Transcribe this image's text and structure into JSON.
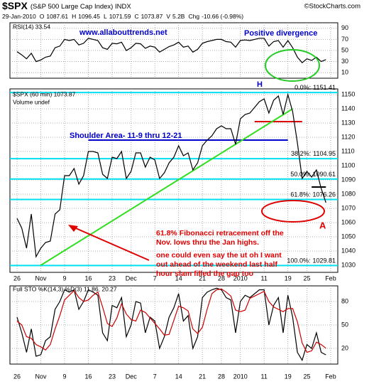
{
  "header": {
    "symbol": "$SPX",
    "name": "(S&P 500 Large Cap Index) INDX",
    "credit": "©StockCharts.com",
    "date": "29-Jan-2010",
    "quote": [
      {
        "label": "O",
        "value": "1087.61"
      },
      {
        "label": "H",
        "value": "1096.45"
      },
      {
        "label": "L",
        "value": "1071.59"
      },
      {
        "label": "C",
        "value": "1073.87"
      },
      {
        "label": "V",
        "value": "5.2B"
      },
      {
        "label": "Chg",
        "value": "-10.66 (-0.98%)"
      }
    ]
  },
  "x_axis": {
    "xlim": [
      -1.5,
      67.5
    ],
    "x": [
      0,
      1,
      2,
      3,
      4,
      5,
      6,
      7,
      8,
      9,
      10,
      11,
      12,
      13,
      14,
      15,
      16,
      17,
      18,
      19,
      20,
      21,
      22,
      23,
      24,
      25,
      26,
      27,
      28,
      29,
      30,
      31,
      32,
      33,
      34,
      35,
      36,
      37,
      38,
      39,
      40,
      41,
      42,
      43,
      44,
      45,
      46,
      47,
      48,
      49,
      50,
      51,
      52,
      53,
      54,
      55,
      56,
      57,
      58,
      59,
      60,
      61,
      62,
      63,
      64,
      65
    ],
    "xticks": [
      {
        "value": 0,
        "label": "26"
      },
      {
        "value": 5,
        "label": "Nov"
      },
      {
        "value": 10,
        "label": "9"
      },
      {
        "value": 15,
        "label": "16"
      },
      {
        "value": 20,
        "label": "23"
      },
      {
        "value": 24,
        "label": "Dec"
      },
      {
        "value": 29,
        "label": "7"
      },
      {
        "value": 34,
        "label": "14"
      },
      {
        "value": 39,
        "label": "21"
      },
      {
        "value": 43,
        "label": "28"
      },
      {
        "value": 47,
        "label": "2010"
      },
      {
        "value": 52,
        "label": "11"
      },
      {
        "value": 57,
        "label": "19"
      },
      {
        "value": 61,
        "label": "25"
      },
      {
        "value": 66,
        "label": "Feb"
      }
    ]
  },
  "chart_data": [
    {
      "type": "line",
      "title": "RSI(14) 33.54",
      "ylim": [
        0,
        100
      ],
      "yticks": [
        10,
        30,
        50,
        70,
        90
      ],
      "grid": true,
      "color": "#000000",
      "values": [
        48,
        42,
        35,
        45,
        30,
        33,
        38,
        40,
        55,
        58,
        70,
        68,
        70,
        60,
        63,
        72,
        70,
        68,
        55,
        52,
        63,
        62,
        65,
        50,
        55,
        63,
        62,
        54,
        58,
        56,
        47,
        52,
        57,
        60,
        65,
        56,
        58,
        47,
        52,
        63,
        66,
        68,
        70,
        70,
        66,
        65,
        56,
        68,
        69,
        68,
        70,
        72,
        72,
        58,
        66,
        68,
        56,
        68,
        55,
        38,
        28,
        35,
        32,
        38,
        30,
        33.54
      ],
      "annotations": {
        "site": "www.allabouttrends.net",
        "divergence": "Positive divergence"
      }
    },
    {
      "type": "line",
      "title": "$SPX (60 min) 1073.87",
      "subtitle": "Volume undef",
      "ylim": [
        1025,
        1154
      ],
      "yticks": [
        1030,
        1040,
        1050,
        1060,
        1070,
        1080,
        1090,
        1100,
        1110,
        1120,
        1130,
        1140,
        1150
      ],
      "grid": true,
      "color": "#000000",
      "values": [
        1063,
        1056,
        1042,
        1066,
        1036,
        1042,
        1046,
        1047,
        1066,
        1069,
        1093,
        1093,
        1098,
        1087,
        1093,
        1110,
        1110,
        1109,
        1094,
        1091,
        1106,
        1105,
        1110,
        1091,
        1096,
        1109,
        1109,
        1099,
        1106,
        1104,
        1091,
        1095,
        1102,
        1106,
        1114,
        1107,
        1109,
        1097,
        1102,
        1114,
        1118,
        1121,
        1126,
        1128,
        1126,
        1126,
        1115,
        1133,
        1136,
        1137,
        1141,
        1145,
        1147,
        1137,
        1146,
        1149,
        1136,
        1150,
        1138,
        1116,
        1091,
        1096,
        1092,
        1097,
        1084,
        1074
      ],
      "fibonacci": [
        {
          "label": "0.0%:",
          "value": 1151.41
        },
        {
          "label": "38.2%:",
          "value": 1104.95
        },
        {
          "label": "50.0%:",
          "value": 1090.61
        },
        {
          "label": "61.8%:",
          "value": 1076.26
        },
        {
          "label": "100.0%:",
          "value": 1029.81
        }
      ],
      "fib_color": "#00e0f0",
      "lines": [
        {
          "x": [
            15,
            57
          ],
          "y": [
            1118,
            1118
          ],
          "color": "#0000cc"
        },
        {
          "x": [
            50,
            60
          ],
          "y": [
            1131,
            1131
          ],
          "color": "#dd0000"
        },
        {
          "x": [
            5,
            58
          ],
          "y": [
            1030,
            1140
          ],
          "color": "#33dd22"
        },
        {
          "x": [
            62,
            65
          ],
          "y": [
            1085,
            1085
          ],
          "color": "#000000"
        }
      ],
      "annotations": {
        "shoulder": "Shoulder Area- 11-9 thru 12-21",
        "high": "H",
        "target": "A",
        "note": [
          "61.8% Fibonacci retracement off the",
          "Nov. lows thru the Jan highs.",
          "one could even say the ut oh I want",
          "out ahead of the weekend last half",
          "hour slam filled the gap too"
        ]
      }
    },
    {
      "type": "line",
      "title": "Full STO %K(14,3) %D(3) 11.86, 20.27",
      "ylim": [
        0,
        100
      ],
      "yticks": [
        20,
        50,
        80
      ],
      "grid": true,
      "series": [
        {
          "color": "#000000",
          "values": [
            60,
            40,
            15,
            45,
            10,
            12,
            30,
            35,
            70,
            80,
            95,
            92,
            95,
            70,
            80,
            95,
            92,
            88,
            40,
            30,
            75,
            72,
            85,
            35,
            50,
            80,
            78,
            40,
            60,
            55,
            20,
            35,
            60,
            72,
            90,
            55,
            62,
            20,
            35,
            85,
            92,
            95,
            97,
            95,
            85,
            82,
            40,
            80,
            88,
            85,
            90,
            95,
            95,
            50,
            75,
            85,
            40,
            88,
            60,
            15,
            5,
            25,
            20,
            40,
            15,
            11.86
          ]
        },
        {
          "color": "#cc0000",
          "values": [
            55,
            50,
            35,
            33,
            25,
            22,
            18,
            25,
            45,
            62,
            82,
            88,
            94,
            85,
            80,
            82,
            88,
            92,
            73,
            52,
            48,
            59,
            77,
            64,
            57,
            55,
            69,
            66,
            59,
            52,
            45,
            37,
            38,
            56,
            74,
            72,
            68,
            45,
            39,
            47,
            70,
            90,
            95,
            96,
            92,
            87,
            69,
            67,
            69,
            84,
            87,
            90,
            93,
            80,
            73,
            70,
            67,
            71,
            71,
            54,
            27,
            15,
            17,
            28,
            25,
            20.27
          ]
        }
      ]
    }
  ]
}
